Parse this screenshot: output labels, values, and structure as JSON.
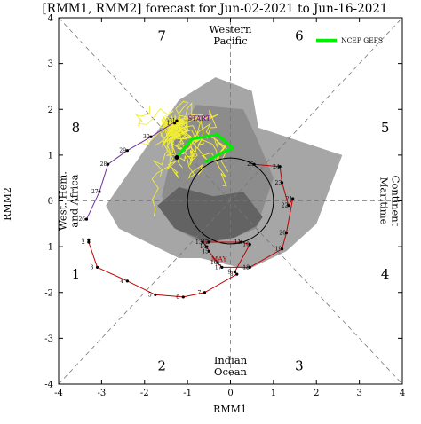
{
  "chart_data": {
    "type": "scatter",
    "title": "[RMM1, RMM2] forecast for Jun-02-2021 to Jun-16-2021",
    "xlabel": "RMM1",
    "ylabel": "RMM2",
    "xlim": [
      -4,
      4
    ],
    "ylim": [
      -4,
      4
    ],
    "xticks": [
      -4,
      -3,
      -2,
      -1,
      0,
      1,
      2,
      3,
      4
    ],
    "yticks": [
      -4,
      -3,
      -2,
      -1,
      0,
      1,
      2,
      3,
      4
    ],
    "grid": false,
    "legend": {
      "position": "top-right",
      "entries": [
        {
          "name": "NCEP GEFS",
          "color": "#00ee00"
        }
      ]
    },
    "phase_labels": [
      {
        "text": "7",
        "x": -1.6,
        "y": 3.6
      },
      {
        "text": "6",
        "x": 1.6,
        "y": 3.6
      },
      {
        "text": "8",
        "x": -3.6,
        "y": 1.6
      },
      {
        "text": "5",
        "x": 3.6,
        "y": 1.6
      },
      {
        "text": "1",
        "x": -3.6,
        "y": -1.6
      },
      {
        "text": "4",
        "x": 3.6,
        "y": -1.6
      },
      {
        "text": "2",
        "x": -1.6,
        "y": -3.6
      },
      {
        "text": "3",
        "x": 1.6,
        "y": -3.6
      }
    ],
    "region_labels": {
      "top": [
        "Western",
        "Pacific"
      ],
      "bottom": [
        "Indian",
        "Ocean"
      ],
      "left": [
        "West. Hem.",
        "and Africa"
      ],
      "right": [
        "Maritime",
        "Continent"
      ]
    },
    "annotations": [
      {
        "text": "START",
        "x": -1.0,
        "y": 1.75,
        "color": "#800080"
      },
      {
        "text": "MAY",
        "x": -0.45,
        "y": -1.32,
        "color": "#aa0000"
      }
    ],
    "observed_may": {
      "color": "#c00000",
      "days": [
        1,
        2,
        3,
        4,
        5,
        6,
        7,
        8,
        9,
        10,
        11,
        12,
        13,
        14,
        15,
        16,
        17,
        18,
        19,
        20,
        21,
        22,
        23,
        24,
        25
      ],
      "x": [
        -3.3,
        -3.3,
        -3.1,
        -2.4,
        -1.75,
        -1.1,
        -0.6,
        0.15,
        0.1,
        0.45,
        0.25,
        -0.5,
        -0.65,
        -0.55,
        -0.5,
        -0.3,
        -0.2,
        0.45,
        1.2,
        1.3,
        1.45,
        1.35,
        1.2,
        1.15,
        0.55
      ],
      "y": [
        -0.85,
        -0.9,
        -1.45,
        -1.75,
        -2.05,
        -2.1,
        -2.0,
        -1.6,
        -1.55,
        -0.95,
        -0.9,
        -0.9,
        -0.9,
        -1.0,
        -1.1,
        -1.35,
        -1.45,
        -1.45,
        -1.05,
        -0.7,
        0.05,
        -0.1,
        0.4,
        0.75,
        0.8
      ]
    },
    "observed_recent": {
      "color": "#7030a0",
      "days": [
        26,
        27,
        28,
        29,
        30,
        31,
        1
      ],
      "x": [
        -3.35,
        -3.05,
        -2.85,
        -2.4,
        -1.85,
        -1.25,
        -1.3
      ],
      "y": [
        -0.4,
        0.2,
        0.8,
        1.1,
        1.4,
        1.75,
        1.7
      ]
    },
    "ensemble_mean": {
      "name": "NCEP GEFS",
      "color": "#00ee00",
      "x": [
        -1.25,
        -0.9,
        -0.3,
        0.05,
        -0.2,
        -0.6
      ],
      "y": [
        0.95,
        1.35,
        1.45,
        1.15,
        1.05,
        0.85
      ]
    },
    "spread_outer": {
      "color": "#a6a6a6",
      "x": [
        -2.9,
        -1.2,
        -0.35,
        0.5,
        0.65,
        2.6,
        2.0,
        1.3,
        0.4,
        -0.7,
        -1.2,
        -2.6
      ],
      "y": [
        -0.1,
        2.2,
        2.7,
        2.4,
        1.6,
        1.0,
        -0.5,
        -1.1,
        -1.5,
        -1.25,
        -1.25,
        -0.6
      ]
    },
    "spread_mid": {
      "color": "#8c8c8c",
      "x": [
        -1.6,
        -1.3,
        -0.8,
        0.3,
        0.6,
        1.0,
        0.6,
        0.1,
        -0.6,
        -1.3
      ],
      "y": [
        0.1,
        1.3,
        2.1,
        2.0,
        1.4,
        0.5,
        -0.6,
        -0.8,
        -0.95,
        -0.6
      ]
    },
    "spread_inner": {
      "color": "#636363",
      "x": [
        -1.7,
        -1.2,
        -0.4,
        0.3,
        0.75,
        0.6,
        0.1,
        -0.55,
        -1.3
      ],
      "y": [
        -0.1,
        0.3,
        0.1,
        0.2,
        -0.35,
        -0.55,
        -0.8,
        -0.9,
        -0.6
      ]
    }
  }
}
